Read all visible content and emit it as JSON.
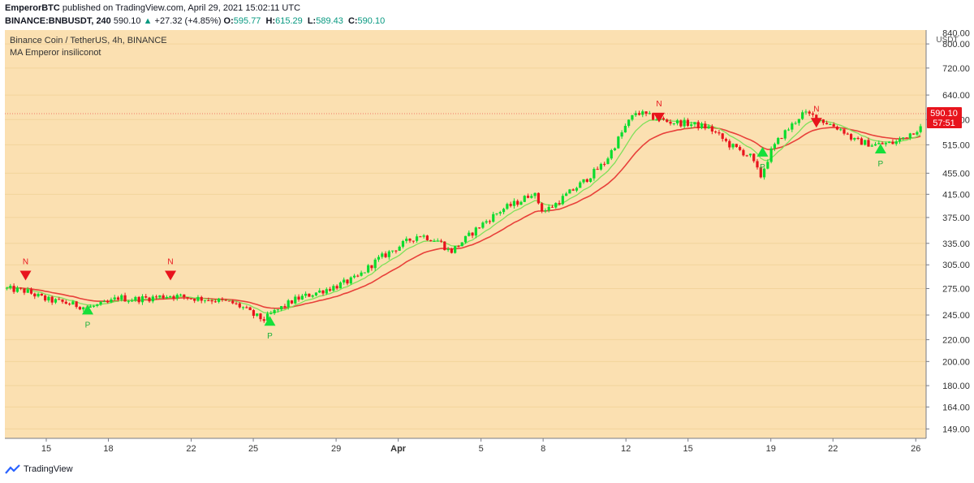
{
  "header": {
    "author": "EmperorBTC",
    "published": "published on TradingView.com, April 29, 2021 15:02:11 UTC",
    "symbol": "BINANCE:BNBUSDT, 240",
    "last": "590.10",
    "change": "+27.32 (+4.85%)",
    "o_label": "O:",
    "o": "595.77",
    "h_label": "H:",
    "h": "615.29",
    "l_label": "L:",
    "l": "589.43",
    "c_label": "C:",
    "c": "590.10"
  },
  "legend": {
    "title": "Binance Coin / TetherUS, 4h, BINANCE",
    "indicator": "MA Emperor insiliconot"
  },
  "footer": {
    "brand": "TradingView"
  },
  "colors": {
    "background": "#fbe0b1",
    "up": "#0bdc2e",
    "down": "#e8141d",
    "ma_fast": "#7fe05a",
    "ma_slow": "#e8403a",
    "signal_long": "#15e03a",
    "signal_short": "#e8141d",
    "price_tag": "#e8141d"
  },
  "chart_data": {
    "type": "candlestick",
    "title": "Binance Coin / TetherUS, 4h, BINANCE",
    "y_unit": "USDT",
    "y_scale": "log",
    "ylim": [
      143,
      850
    ],
    "y_ticks": [
      149,
      164,
      180,
      200,
      220,
      245,
      275,
      305,
      335,
      375,
      415,
      455,
      515,
      575,
      640,
      720,
      800
    ],
    "y_tick_labels": [
      "149.00",
      "164.00",
      "180.00",
      "200.00",
      "220.00",
      "245.00",
      "275.00",
      "305.00",
      "335.00",
      "375.00",
      "415.00",
      "455.00",
      "515.00",
      "575.00",
      "640.00",
      "720.00",
      "800.00",
      "840.00"
    ],
    "top_tick": {
      "value": 840,
      "label": "840.00"
    },
    "x_ticks": [
      "15",
      "18",
      "22",
      "25",
      "29",
      "Apr",
      "5",
      "8",
      "12",
      "15",
      "19",
      "22",
      "26"
    ],
    "xlim": [
      0,
      44.5
    ],
    "x_tick_days": [
      2,
      5,
      9,
      12,
      16,
      19,
      23,
      26,
      30,
      33,
      37,
      40,
      44
    ],
    "price_path": [
      [
        0,
        275
      ],
      [
        1,
        272
      ],
      [
        2,
        262
      ],
      [
        3,
        258
      ],
      [
        4,
        253
      ],
      [
        5,
        258
      ],
      [
        5.5,
        265
      ],
      [
        6,
        262
      ],
      [
        7,
        264
      ],
      [
        8,
        267
      ],
      [
        9,
        264
      ],
      [
        10,
        262
      ],
      [
        11,
        258
      ],
      [
        11.5,
        253
      ],
      [
        12,
        245
      ],
      [
        12.5,
        240
      ],
      [
        13,
        248
      ],
      [
        14,
        262
      ],
      [
        15,
        270
      ],
      [
        16,
        278
      ],
      [
        17,
        288
      ],
      [
        17.5,
        300
      ],
      [
        18,
        312
      ],
      [
        19,
        330
      ],
      [
        20,
        348
      ],
      [
        20.5,
        343
      ],
      [
        21,
        338
      ],
      [
        21.5,
        322
      ],
      [
        22,
        335
      ],
      [
        23,
        363
      ],
      [
        24,
        388
      ],
      [
        25,
        405
      ],
      [
        25.5,
        420
      ],
      [
        26,
        385
      ],
      [
        26.5,
        395
      ],
      [
        27,
        410
      ],
      [
        28,
        440
      ],
      [
        29,
        478
      ],
      [
        30,
        560
      ],
      [
        30.5,
        595
      ],
      [
        31,
        585
      ],
      [
        32,
        570
      ],
      [
        33,
        565
      ],
      [
        34,
        555
      ],
      [
        34.5,
        535
      ],
      [
        35,
        515
      ],
      [
        36,
        490
      ],
      [
        36.5,
        448
      ],
      [
        37,
        500
      ],
      [
        37.5,
        535
      ],
      [
        38,
        560
      ],
      [
        38.5,
        590
      ],
      [
        39,
        585
      ],
      [
        39.5,
        572
      ],
      [
        40,
        560
      ],
      [
        40.5,
        548
      ],
      [
        41,
        525
      ],
      [
        42,
        515
      ],
      [
        43,
        520
      ],
      [
        44,
        550
      ],
      [
        45,
        570
      ],
      [
        46,
        590
      ]
    ],
    "last_close": {
      "value": "590.10",
      "countdown": "57:51"
    },
    "annotations": [
      {
        "type": "sell",
        "label": "N",
        "x": 1.0,
        "price": 290
      },
      {
        "type": "buy",
        "label": "P",
        "x": 4.0,
        "price": 250
      },
      {
        "type": "sell",
        "label": "N",
        "x": 8.0,
        "price": 290
      },
      {
        "type": "buy",
        "label": "P",
        "x": 12.8,
        "price": 238
      },
      {
        "type": "sell",
        "label": "N",
        "x": 31.6,
        "price": 578
      },
      {
        "type": "buy",
        "label": "P",
        "x": 36.6,
        "price": 498
      },
      {
        "type": "sell",
        "label": "N",
        "x": 39.2,
        "price": 565
      },
      {
        "type": "buy",
        "label": "P",
        "x": 42.3,
        "price": 505
      }
    ]
  }
}
